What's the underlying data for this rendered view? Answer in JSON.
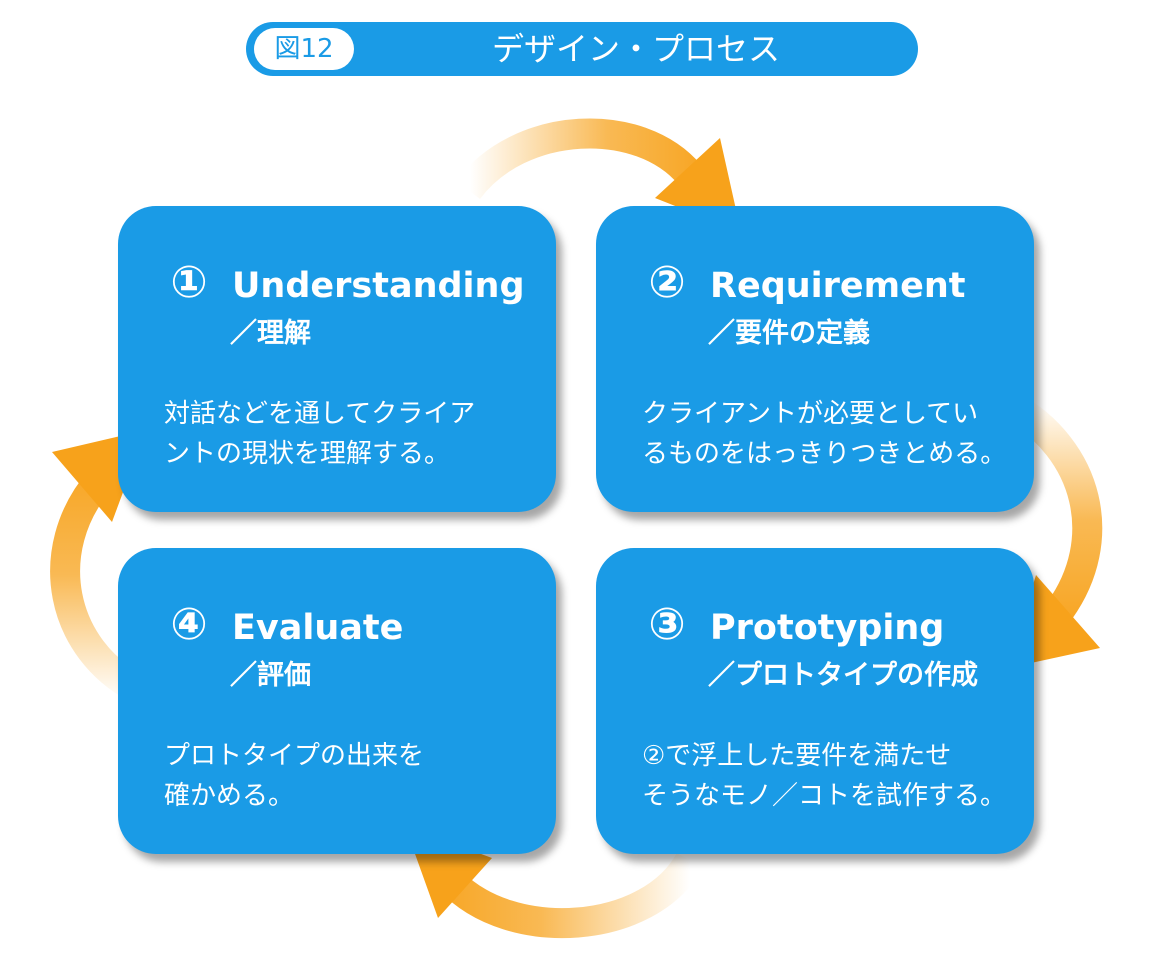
{
  "header": {
    "figure_label": "図12",
    "title": "デザイン・プロセス"
  },
  "colors": {
    "card_blue": "#1a9be6",
    "arrow_orange": "#f7a21b",
    "text_white": "#ffffff"
  },
  "steps": [
    {
      "number": "①",
      "title": "Understanding",
      "subtitle": "／理解",
      "description": [
        "対話などを通してクライア",
        "ントの現状を理解する。"
      ]
    },
    {
      "number": "②",
      "title": "Requirement",
      "subtitle": "／要件の定義",
      "description": [
        "クライアントが必要としてい",
        "るものをはっきりつきとめる。"
      ]
    },
    {
      "number": "③",
      "title": "Prototyping",
      "subtitle": "／プロトタイプの作成",
      "description": [
        "②で浮上した要件を満たせ",
        "そうなモノ／コトを試作する。"
      ]
    },
    {
      "number": "④",
      "title": "Evaluate",
      "subtitle": "／評価",
      "description": [
        "プロトタイプの出来を",
        "確かめる。"
      ]
    }
  ]
}
